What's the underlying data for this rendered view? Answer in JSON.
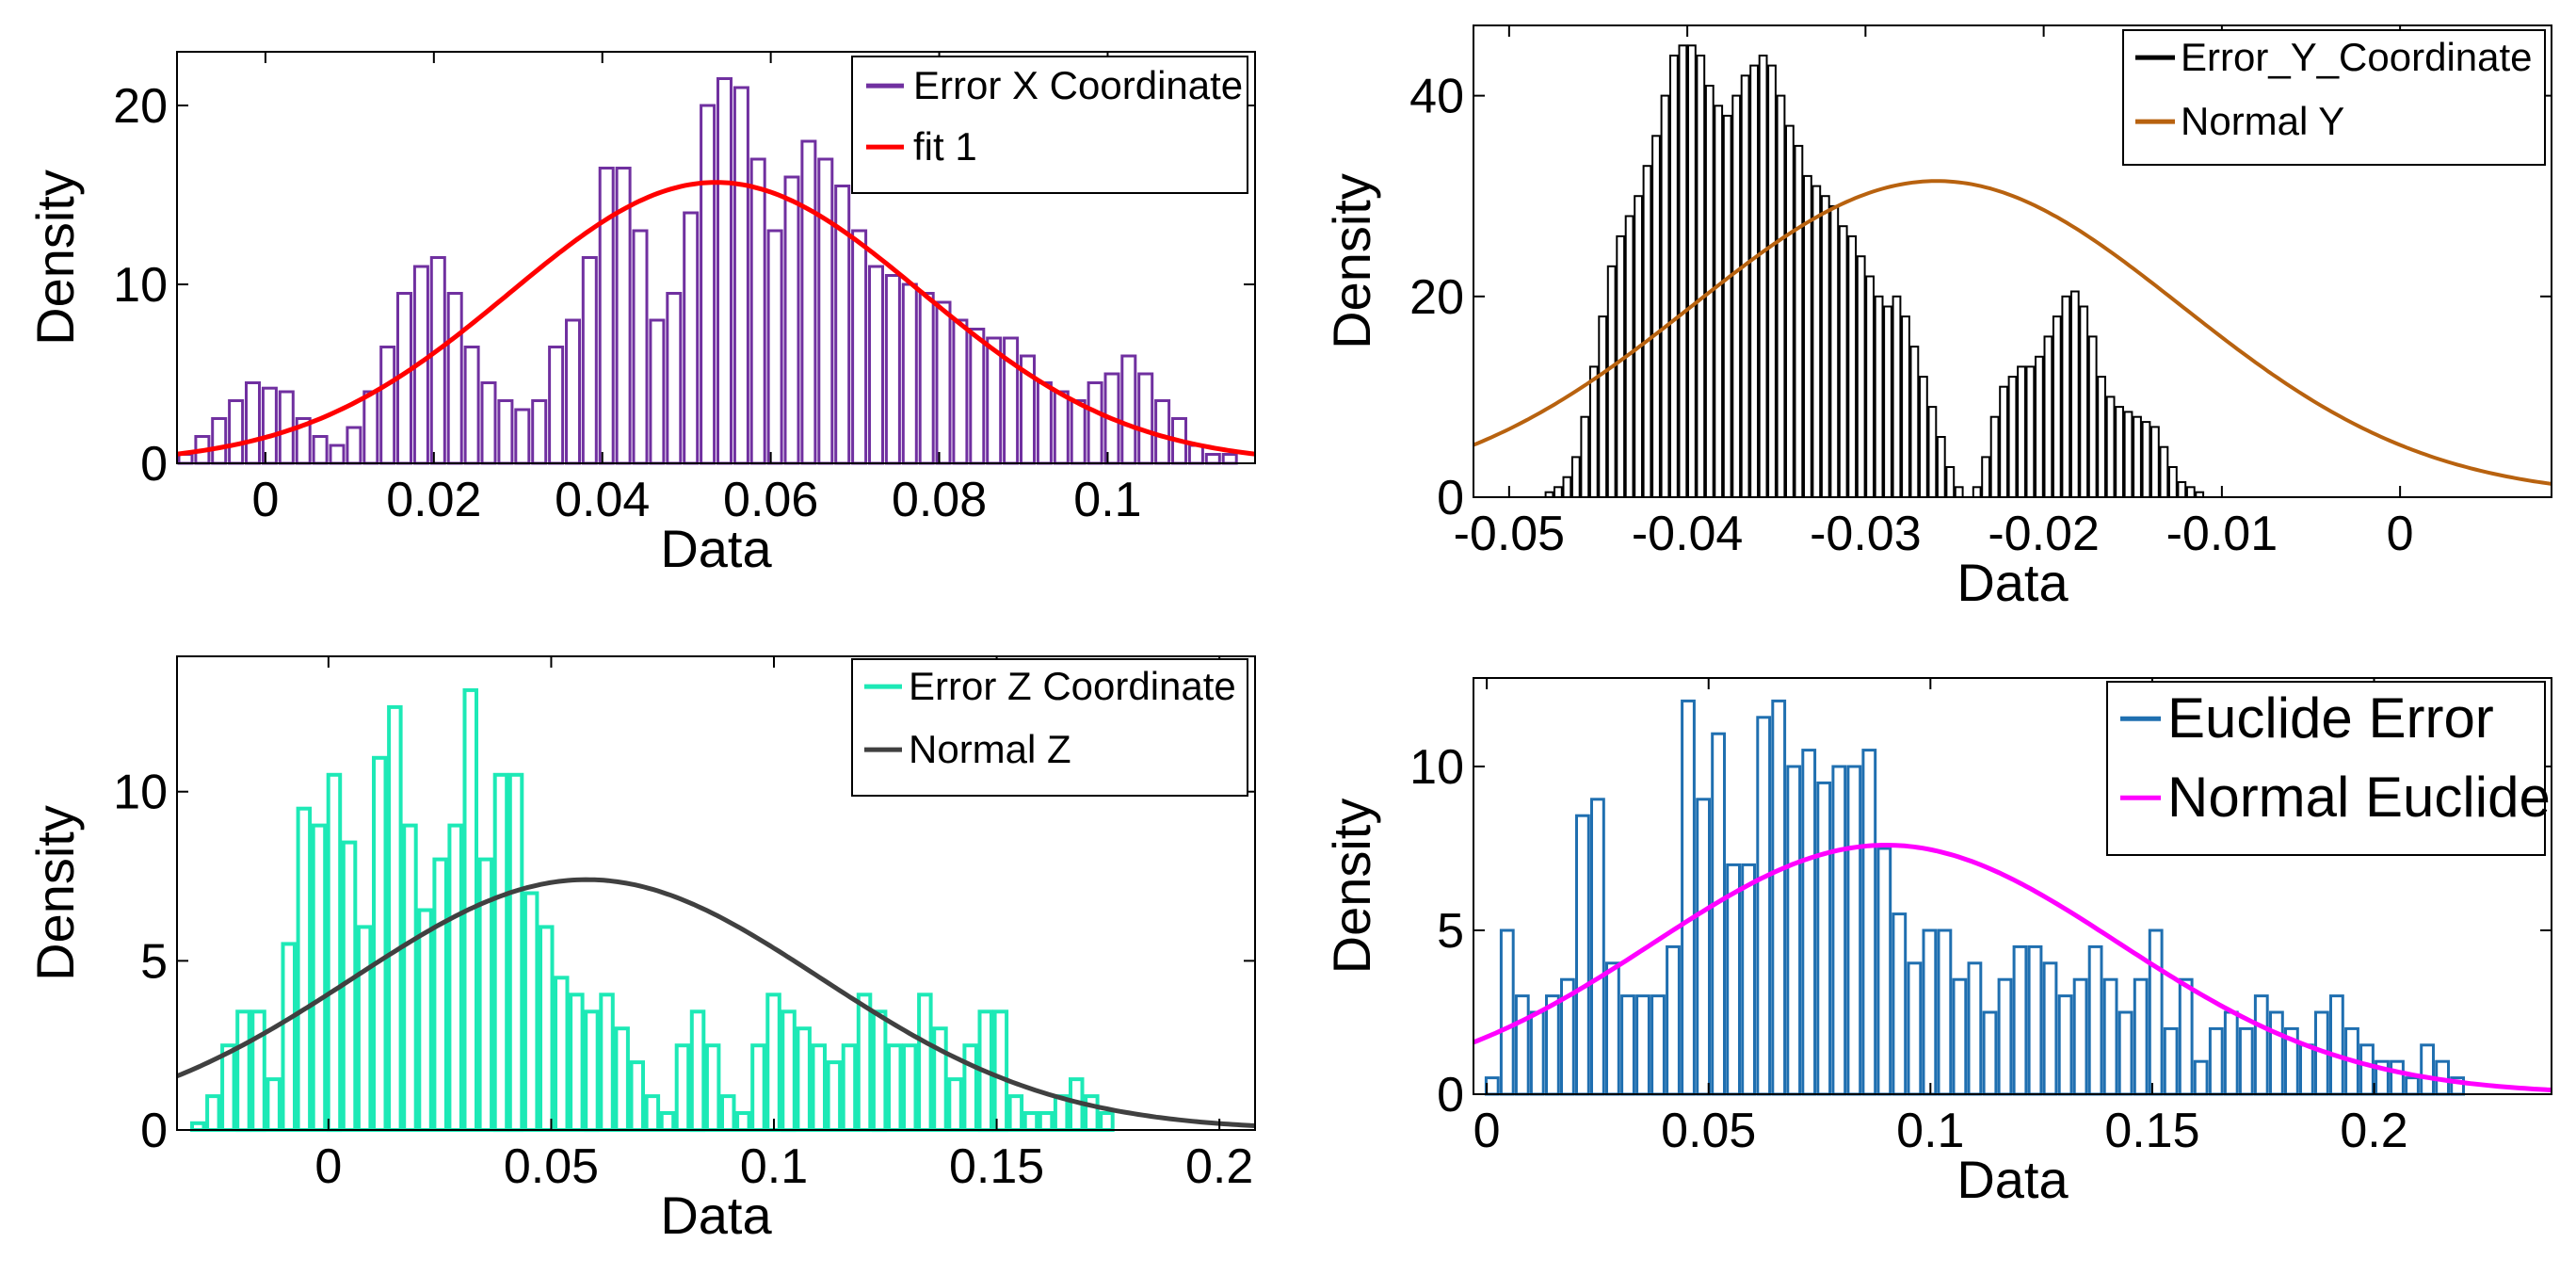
{
  "chart_data": [
    {
      "id": "x",
      "type": "histogram",
      "xlabel": "Data",
      "ylabel": "Density",
      "xlim": [
        -0.0105,
        0.1175
      ],
      "ylim": [
        0,
        23
      ],
      "x_ticks": [
        0,
        0.02,
        0.04,
        0.06,
        0.08,
        0.1
      ],
      "x_tick_labels": [
        "0",
        "0.02",
        "0.04",
        "0.06",
        "0.08",
        "0.1"
      ],
      "y_ticks": [
        0,
        10,
        20
      ],
      "y_tick_labels": [
        "0",
        "10",
        "20"
      ],
      "bins": {
        "start": -0.0105,
        "width": 0.002
      },
      "values": [
        0.5,
        1.5,
        2.5,
        3.5,
        4.5,
        4.2,
        4,
        2.5,
        1.5,
        1,
        2,
        4,
        6.5,
        9.5,
        11,
        11.5,
        9.5,
        6.5,
        4.5,
        3.5,
        3,
        3.5,
        6.5,
        8,
        11.5,
        16.5,
        16.5,
        13,
        8,
        9.5,
        14,
        20,
        21.5,
        21,
        17,
        13,
        16,
        18,
        17,
        15.5,
        13,
        11,
        10.5,
        10,
        9.5,
        9,
        8,
        7.5,
        7,
        7,
        6,
        4.5,
        4,
        3.5,
        4.5,
        5,
        6,
        5,
        3.5,
        2.5,
        1,
        0.5,
        0.5,
        0
      ],
      "bar_color": "#7030a0",
      "fit": {
        "type": "normal",
        "mean": 0.0535,
        "sd": 0.0245,
        "peak": 15.7,
        "color": "#ff0000"
      },
      "legend": {
        "position": "top-right",
        "entries": [
          "Error X Coordinate",
          "fit 1"
        ]
      }
    },
    {
      "id": "y",
      "type": "histogram",
      "xlabel": "Data",
      "ylabel": "Density",
      "xlim": [
        -0.052,
        0.0085
      ],
      "ylim": [
        0,
        47
      ],
      "x_ticks": [
        -0.05,
        -0.04,
        -0.03,
        -0.02,
        -0.01,
        0
      ],
      "x_tick_labels": [
        "-0.05",
        "-0.04",
        "-0.03",
        "-0.02",
        "-0.01",
        "0"
      ],
      "y_ticks": [
        0,
        20,
        40
      ],
      "y_tick_labels": [
        "0",
        "20",
        "40"
      ],
      "bins": {
        "start": -0.0505,
        "width": 0.0005
      },
      "values": [
        0,
        0,
        0,
        0,
        0,
        0.5,
        1,
        2,
        4,
        8,
        13,
        18,
        23,
        26,
        28,
        30,
        33,
        36,
        40,
        44,
        45,
        45,
        44,
        41,
        39,
        38,
        40,
        42,
        43,
        44,
        43,
        40,
        37,
        35,
        32,
        31,
        30,
        29,
        27,
        26,
        24,
        22,
        20,
        19,
        20,
        18,
        15,
        12,
        9,
        6,
        3,
        1,
        0,
        1,
        4,
        8,
        11,
        12,
        13,
        13,
        14,
        16,
        18,
        20,
        20.5,
        19,
        16,
        12,
        10,
        9,
        8.5,
        8,
        7.5,
        7,
        5,
        3,
        1.5,
        1,
        0.5,
        0,
        0,
        0
      ],
      "bar_color": "#000000",
      "fit": {
        "type": "normal",
        "mean": -0.026,
        "sd": 0.0137,
        "peak": 31.5,
        "color": "#b8620f"
      },
      "legend": {
        "position": "top-right",
        "entries": [
          "Error_Y_Coordinate",
          "Normal Y"
        ]
      }
    },
    {
      "id": "z",
      "type": "histogram",
      "xlabel": "Data",
      "ylabel": "Density",
      "xlim": [
        -0.034,
        0.208
      ],
      "ylim": [
        0,
        14
      ],
      "x_ticks": [
        0,
        0.05,
        0.1,
        0.15,
        0.2
      ],
      "x_tick_labels": [
        "0",
        "0.05",
        "0.1",
        "0.15",
        "0.2"
      ],
      "y_ticks": [
        0,
        5,
        10
      ],
      "y_tick_labels": [
        "0",
        "5",
        "10"
      ],
      "bins": {
        "start": -0.031,
        "width": 0.0034
      },
      "values": [
        0.2,
        1,
        2.5,
        3.5,
        3.5,
        1.5,
        5.5,
        9.5,
        9,
        10.5,
        8.5,
        6,
        11,
        12.5,
        9,
        6.5,
        8,
        9,
        13,
        8,
        10.5,
        10.5,
        7,
        6,
        4.5,
        4,
        3.5,
        4,
        3,
        2,
        1,
        0.5,
        2.5,
        3.5,
        2.5,
        1,
        0.5,
        2.5,
        4,
        3.5,
        3,
        2.5,
        2,
        2.5,
        4,
        3.5,
        2.5,
        2.5,
        4,
        3,
        1.5,
        2.5,
        3.5,
        3.5,
        1,
        0.5,
        0.5,
        1,
        1.5,
        1,
        0.5
      ],
      "bar_color": "#1de9b6",
      "fit": {
        "type": "normal",
        "mean": 0.058,
        "sd": 0.0525,
        "peak": 7.4,
        "color": "#404040"
      },
      "legend": {
        "position": "top-right",
        "entries": [
          "Error Z Coordinate",
          "Normal Z"
        ]
      }
    },
    {
      "id": "euclide",
      "type": "histogram",
      "xlabel": "Data",
      "ylabel": "Density",
      "xlim": [
        -0.003,
        0.24
      ],
      "ylim": [
        0,
        12.7
      ],
      "x_ticks": [
        0,
        0.05,
        0.1,
        0.15,
        0.2
      ],
      "x_tick_labels": [
        "0",
        "0.05",
        "0.1",
        "0.15",
        "0.2"
      ],
      "y_ticks": [
        0,
        5,
        10
      ],
      "y_tick_labels": [
        "0",
        "5",
        "10"
      ],
      "bins": {
        "start": -0.0005,
        "width": 0.0034
      },
      "values": [
        0.5,
        5,
        3,
        2.5,
        3,
        3.5,
        8.5,
        9,
        4,
        3,
        3,
        3,
        4.5,
        12,
        9,
        11,
        7,
        7,
        11.5,
        12,
        10,
        10.5,
        9.5,
        10,
        10,
        10.5,
        7.5,
        5.5,
        4,
        5,
        5,
        3.5,
        4,
        2.5,
        3.5,
        4.5,
        4.5,
        4,
        3,
        3.5,
        4.5,
        3.5,
        2.5,
        3.5,
        5,
        2,
        3.5,
        1,
        2,
        2.5,
        2,
        3,
        2.5,
        2,
        1.5,
        2.5,
        3,
        2,
        1.5,
        1,
        1,
        0.5,
        1.5,
        1,
        0.5
      ],
      "bar_color": "#1f6fb0",
      "fit": {
        "type": "normal",
        "mean": 0.09,
        "sd": 0.0525,
        "peak": 7.6,
        "color": "#ff00ff"
      },
      "legend": {
        "position": "top-right",
        "entries": [
          "Euclide Error",
          "Normal Euclide"
        ]
      }
    }
  ]
}
